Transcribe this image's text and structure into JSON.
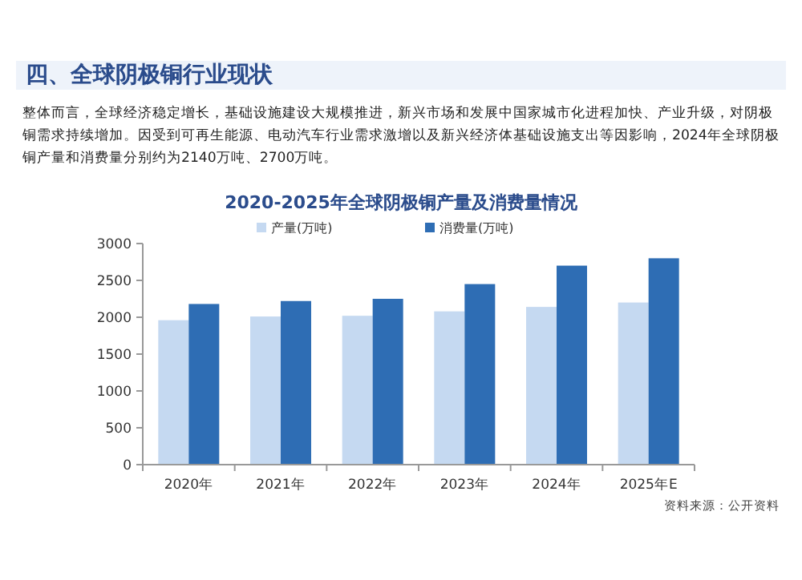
{
  "chart_data": {
    "type": "bar",
    "title": "2020-2025年全球阴极铜产量及消费量情况",
    "annotations": [
      "四、全球阴极铜行业现状",
      "整体而言，全球经济稳定增长，基础设施建设大规模推进，新兴市场和发展中国家城市化进程加快、产业升级，对阴极铜需求持续增加。因受到可再生能源、电动汽车行业需求激增以及新兴经济体基础设施支出等因影响，2024年全球阴极铜产量和消费量分别约为2140万吨、2700万吨。",
      "资料来源：公开资料"
    ],
    "categories": [
      "2020年",
      "2021年",
      "2022年",
      "2023年",
      "2024年",
      "2025年E"
    ],
    "series": [
      {
        "name": "产量(万吨)",
        "color": "#c5d9f1",
        "values": [
          1960,
          2010,
          2020,
          2080,
          2140,
          2200
        ]
      },
      {
        "name": "消费量(万吨)",
        "color": "#2e6db4",
        "values": [
          2180,
          2220,
          2250,
          2450,
          2700,
          2800
        ]
      }
    ],
    "ylim": [
      0,
      3000
    ],
    "yticks": [
      0,
      500,
      1000,
      1500,
      2000,
      2500,
      3000
    ],
    "legend": "top"
  }
}
